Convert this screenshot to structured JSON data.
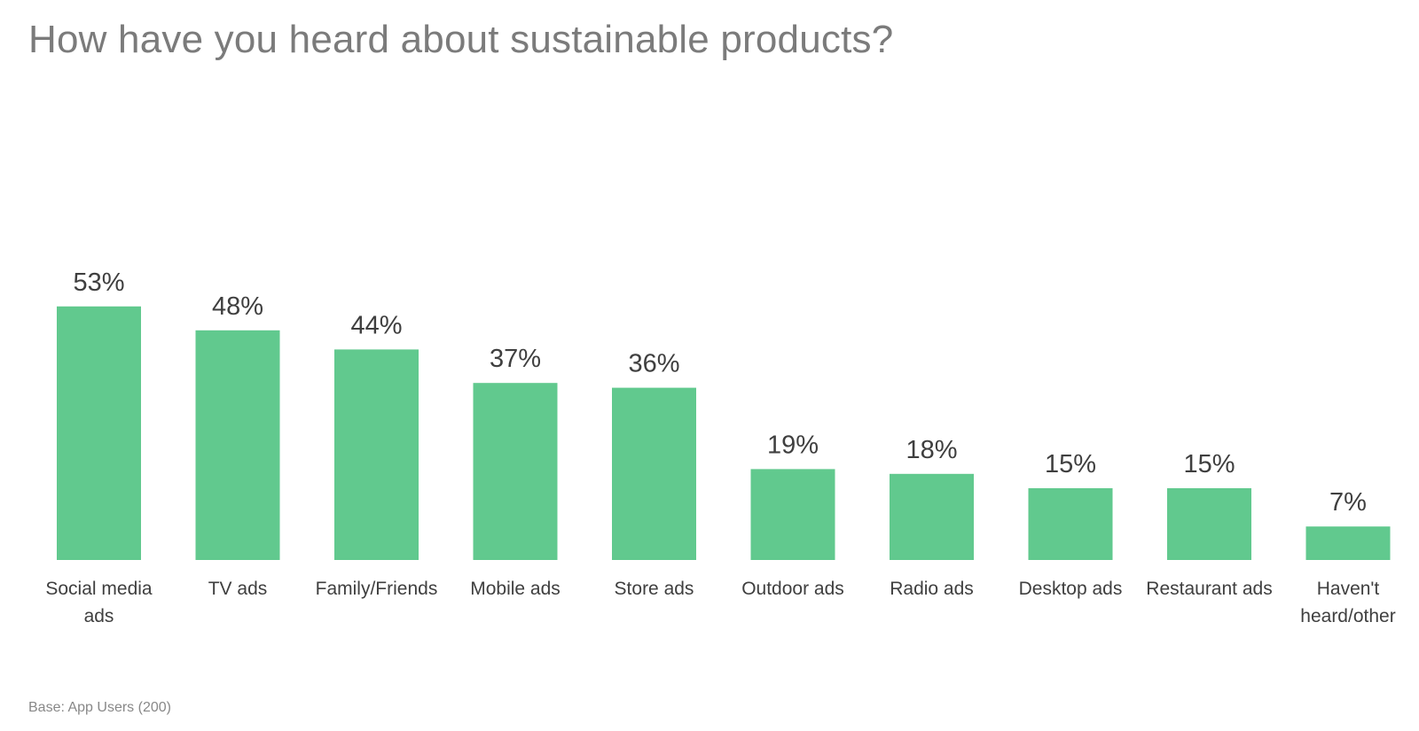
{
  "chart_data": {
    "type": "bar",
    "title": "How have you heard about sustainable products?",
    "categories": [
      [
        "Social media",
        "ads"
      ],
      [
        "TV ads"
      ],
      [
        "Family/Friends"
      ],
      [
        "Mobile ads"
      ],
      [
        "Store ads"
      ],
      [
        "Outdoor ads"
      ],
      [
        "Radio ads"
      ],
      [
        "Desktop ads"
      ],
      [
        "Restaurant ads"
      ],
      [
        "Haven't",
        "heard/other"
      ]
    ],
    "values": [
      53,
      48,
      44,
      37,
      36,
      19,
      18,
      15,
      15,
      7
    ],
    "value_labels": [
      "53%",
      "48%",
      "44%",
      "37%",
      "36%",
      "19%",
      "18%",
      "15%",
      "15%",
      "7%"
    ],
    "unit": "%",
    "xlabel": "",
    "ylabel": "",
    "grid": false,
    "legend": "none",
    "bar_color": "#61c98e",
    "footnote": "Base: App Users (200)"
  }
}
